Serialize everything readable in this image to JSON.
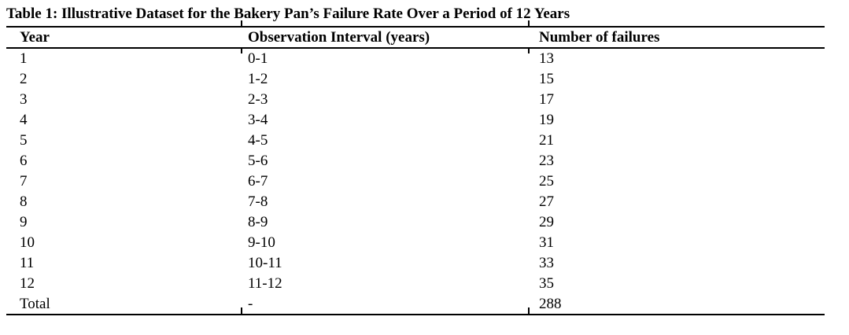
{
  "table": {
    "title": "Table 1: Illustrative Dataset for the Bakery Pan’s Failure Rate Over a Period of 12 Years",
    "headers": [
      "Year",
      "Observation Interval (years)",
      "Number of failures"
    ],
    "rows": [
      {
        "year": "1",
        "interval": "0-1",
        "failures": "13"
      },
      {
        "year": "2",
        "interval": "1-2",
        "failures": "15"
      },
      {
        "year": "3",
        "interval": "2-3",
        "failures": "17"
      },
      {
        "year": "4",
        "interval": "3-4",
        "failures": "19"
      },
      {
        "year": "5",
        "interval": "4-5",
        "failures": "21"
      },
      {
        "year": "6",
        "interval": "5-6",
        "failures": "23"
      },
      {
        "year": "7",
        "interval": "6-7",
        "failures": "25"
      },
      {
        "year": "8",
        "interval": "7-8",
        "failures": "27"
      },
      {
        "year": "9",
        "interval": "8-9",
        "failures": "29"
      },
      {
        "year": "10",
        "interval": "9-10",
        "failures": "31"
      },
      {
        "year": "11",
        "interval": "10-11",
        "failures": "33"
      },
      {
        "year": "12",
        "interval": "11-12",
        "failures": "35"
      }
    ],
    "total": {
      "label": "Total",
      "interval": "-",
      "failures": "288"
    }
  },
  "chart_data": {
    "type": "table",
    "title": "Table 1: Illustrative Dataset for the Bakery Pan’s Failure Rate Over a Period of 12 Years",
    "columns": [
      "Year",
      "Observation Interval (years)",
      "Number of failures"
    ],
    "x": [
      1,
      2,
      3,
      4,
      5,
      6,
      7,
      8,
      9,
      10,
      11,
      12
    ],
    "intervals": [
      "0-1",
      "1-2",
      "2-3",
      "3-4",
      "4-5",
      "5-6",
      "6-7",
      "7-8",
      "8-9",
      "9-10",
      "10-11",
      "11-12"
    ],
    "values": [
      13,
      15,
      17,
      19,
      21,
      23,
      25,
      27,
      29,
      31,
      33,
      35
    ],
    "total": 288
  }
}
